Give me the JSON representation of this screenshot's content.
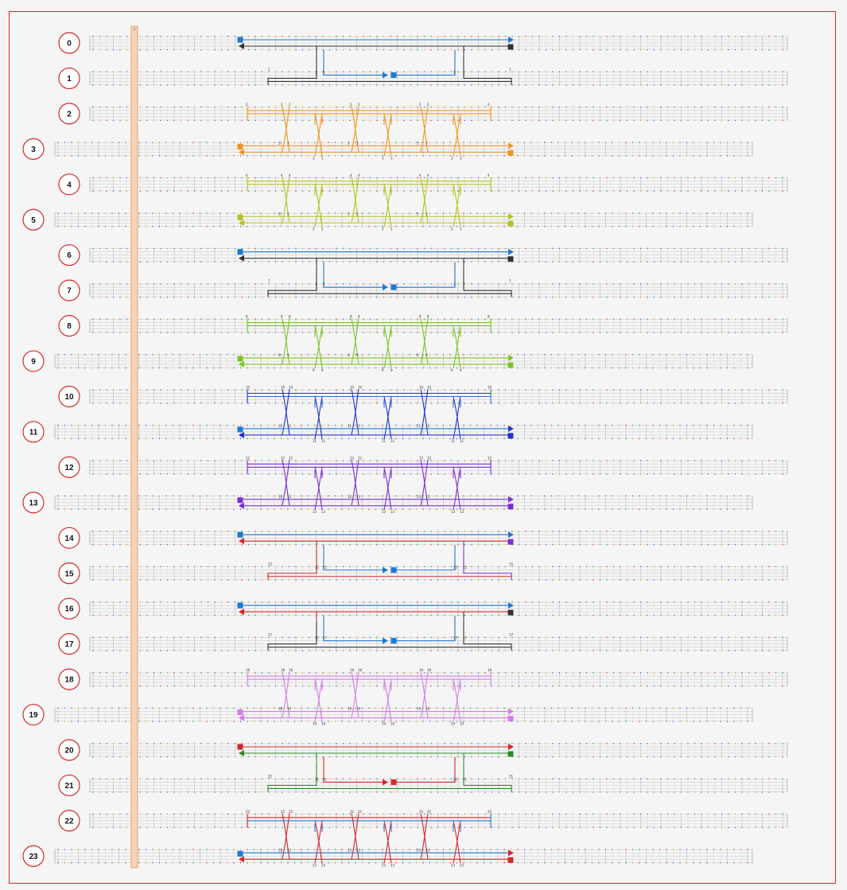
{
  "marker_label": "x",
  "colors": {
    "frame": "#d62728",
    "marker_fill": "#f7d3b6",
    "marker_stroke": "#e8a46e",
    "track": "#9a9a9a"
  },
  "rows": [
    {
      "label": "0",
      "indent": "right",
      "type": "loop-top",
      "color": "#1f77d4",
      "alt": "#333333"
    },
    {
      "label": "1",
      "indent": "right",
      "type": "loop-bottom",
      "color": "#1f77d4",
      "alt": "#333333"
    },
    {
      "label": "2",
      "indent": "right",
      "type": "braid-top",
      "color": "#f0961e"
    },
    {
      "label": "3",
      "indent": "left",
      "type": "braid-bottom",
      "color": "#f0961e"
    },
    {
      "label": "4",
      "indent": "right",
      "type": "braid-top",
      "color": "#b5c21f"
    },
    {
      "label": "5",
      "indent": "left",
      "type": "braid-bottom",
      "color": "#b5c21f"
    },
    {
      "label": "6",
      "indent": "right",
      "type": "loop-top",
      "color": "#1f77d4",
      "alt": "#333333"
    },
    {
      "label": "7",
      "indent": "right",
      "type": "loop-bottom",
      "color": "#1f77d4",
      "alt": "#333333"
    },
    {
      "label": "8",
      "indent": "right",
      "type": "braid-top",
      "color": "#7cc424"
    },
    {
      "label": "9",
      "indent": "left",
      "type": "braid-bottom",
      "color": "#7cc424"
    },
    {
      "label": "10",
      "indent": "right",
      "type": "braid-top",
      "color": "#2233cc",
      "alt": "#1f77d4"
    },
    {
      "label": "11",
      "indent": "left",
      "type": "braid-bottom",
      "color": "#2233cc",
      "alt": "#1f77d4"
    },
    {
      "label": "12",
      "indent": "right",
      "type": "braid-top",
      "color": "#7a2fd0"
    },
    {
      "label": "13",
      "indent": "left",
      "type": "braid-bottom",
      "color": "#7a2fd0"
    },
    {
      "label": "14",
      "indent": "right",
      "type": "loop-top",
      "color": "#1f77d4",
      "alt": "#d62728",
      "end": "#7a2fd0"
    },
    {
      "label": "15",
      "indent": "right",
      "type": "loop-bottom",
      "color": "#1f77d4",
      "alt": "#d62728",
      "end": "#7a2fd0"
    },
    {
      "label": "16",
      "indent": "right",
      "type": "loop-top",
      "color": "#1f77d4",
      "alt": "#d62728",
      "end": "#333333"
    },
    {
      "label": "17",
      "indent": "right",
      "type": "loop-bottom",
      "color": "#1f77d4",
      "alt": "#333333"
    },
    {
      "label": "18",
      "indent": "right",
      "type": "braid-top",
      "color": "#d27ce8"
    },
    {
      "label": "19",
      "indent": "left",
      "type": "braid-bottom",
      "color": "#d27ce8"
    },
    {
      "label": "20",
      "indent": "right",
      "type": "loop-top",
      "color": "#d62728",
      "alt": "#2a8a2a"
    },
    {
      "label": "21",
      "indent": "right",
      "type": "loop-bottom",
      "color": "#d62728",
      "alt": "#2a8a2a"
    },
    {
      "label": "22",
      "indent": "right",
      "type": "braid-top",
      "color": "#d62728",
      "alt": "#1f77d4"
    },
    {
      "label": "23",
      "indent": "left",
      "type": "braid-bottom",
      "color": "#d62728",
      "alt": "#1f77d4"
    }
  ]
}
